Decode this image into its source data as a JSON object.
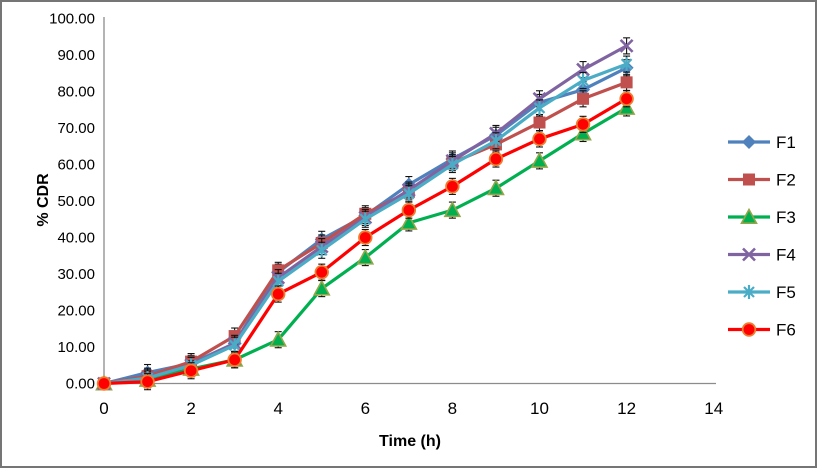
{
  "window": {
    "background_color": "#ffffff",
    "frame_border_color": "#757575",
    "axis_line_color": "#8c8c8c",
    "error_bar_color": "#111111"
  },
  "chart_data": {
    "type": "line",
    "title": "",
    "xlabel": "Time (h)",
    "ylabel": "% CDR",
    "xlim": [
      0,
      14
    ],
    "ylim": [
      0,
      100
    ],
    "x_ticks": [
      0,
      2,
      4,
      6,
      8,
      10,
      12,
      14
    ],
    "y_ticks": [
      "0.00",
      "10.00",
      "20.00",
      "30.00",
      "40.00",
      "50.00",
      "60.00",
      "70.00",
      "80.00",
      "90.00",
      "100.00"
    ],
    "grid": false,
    "legend_position": "right",
    "error_bar": 2.2,
    "x": [
      0,
      1,
      2,
      3,
      4,
      5,
      6,
      7,
      8,
      9,
      10,
      11,
      12
    ],
    "series": [
      {
        "name": "F1",
        "color": "#4F81BD",
        "marker": "diamond-icon",
        "values": [
          0,
          3.0,
          5.5,
          11.0,
          30.5,
          39.5,
          46.0,
          54.5,
          61.5,
          68.0,
          77.0,
          80.5,
          86.5
        ]
      },
      {
        "name": "F2",
        "color": "#C0504D",
        "marker": "square-icon",
        "values": [
          0,
          2.0,
          6.0,
          13.0,
          31.0,
          38.5,
          46.5,
          52.5,
          60.5,
          65.5,
          71.5,
          78.0,
          82.5
        ]
      },
      {
        "name": "F3",
        "color": "#00B050",
        "marker": "triangle-icon",
        "marker_stroke": "#92A64A",
        "values": [
          0,
          1.0,
          4.0,
          6.5,
          12.0,
          26.0,
          34.5,
          44.0,
          47.5,
          53.5,
          61.0,
          68.5,
          75.5
        ]
      },
      {
        "name": "F4",
        "color": "#8064A2",
        "marker": "x-icon",
        "values": [
          0,
          1.5,
          5.0,
          11.0,
          29.0,
          37.5,
          45.5,
          53.0,
          61.0,
          68.5,
          78.0,
          86.0,
          92.5
        ]
      },
      {
        "name": "F5",
        "color": "#4BACC6",
        "marker": "asterisk-icon",
        "values": [
          0,
          1.5,
          5.0,
          10.5,
          28.0,
          36.5,
          45.0,
          52.0,
          60.0,
          66.5,
          75.5,
          83.0,
          87.5
        ]
      },
      {
        "name": "F6",
        "color": "#FF0000",
        "marker": "circle-icon",
        "marker_stroke": "#ED7D31",
        "values": [
          0,
          0.5,
          3.5,
          6.5,
          24.5,
          30.5,
          40.0,
          47.5,
          54.0,
          61.5,
          67.0,
          71.0,
          78.0
        ]
      }
    ]
  }
}
